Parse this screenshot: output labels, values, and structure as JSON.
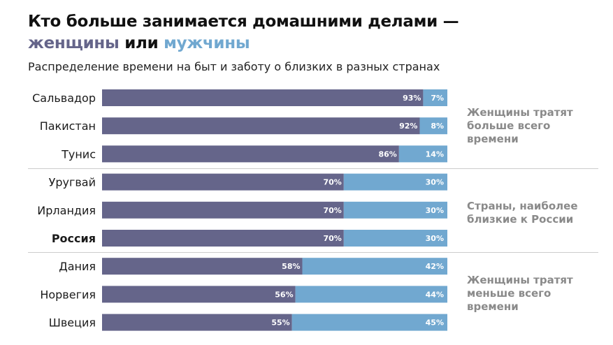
{
  "title": {
    "line1": "Кто больше занимается домашними делами —",
    "women": "женщины",
    "or": "или",
    "men": "мужчины"
  },
  "subtitle": "Распределение времени на быт и заботу о близких в разных странах",
  "colors": {
    "women": "#65658a",
    "men": "#71a8d0",
    "note": "#8a8a8a",
    "divider": "#cccccc"
  },
  "notes": [
    "Женщины тратят больше всего времени",
    "Страны, наиболее близкие к России",
    "Женщины тратят меньше всего времени"
  ],
  "chart_data": {
    "type": "bar",
    "orientation": "horizontal",
    "stacked": true,
    "unit": "%",
    "categories": [
      "Сальвадор",
      "Пакистан",
      "Тунис",
      "Уругвай",
      "Ирландия",
      "Россия",
      "Дания",
      "Норвегия",
      "Швеция"
    ],
    "highlight": "Россия",
    "groups": [
      [
        0,
        1,
        2
      ],
      [
        3,
        4,
        5
      ],
      [
        6,
        7,
        8
      ]
    ],
    "series": [
      {
        "name": "женщины",
        "values": [
          93,
          92,
          86,
          70,
          70,
          70,
          58,
          56,
          55
        ],
        "labels": [
          "93%",
          "92%",
          "86%",
          "70%",
          "70%",
          "70%",
          "58%",
          "56%",
          "55%"
        ]
      },
      {
        "name": "мужчины",
        "values": [
          7,
          8,
          14,
          30,
          30,
          30,
          42,
          44,
          45
        ],
        "labels": [
          "7%",
          "8%",
          "14%",
          "30%",
          "30%",
          "30%",
          "42%",
          "44%",
          "45%"
        ]
      }
    ],
    "xlim": [
      0,
      100
    ]
  }
}
